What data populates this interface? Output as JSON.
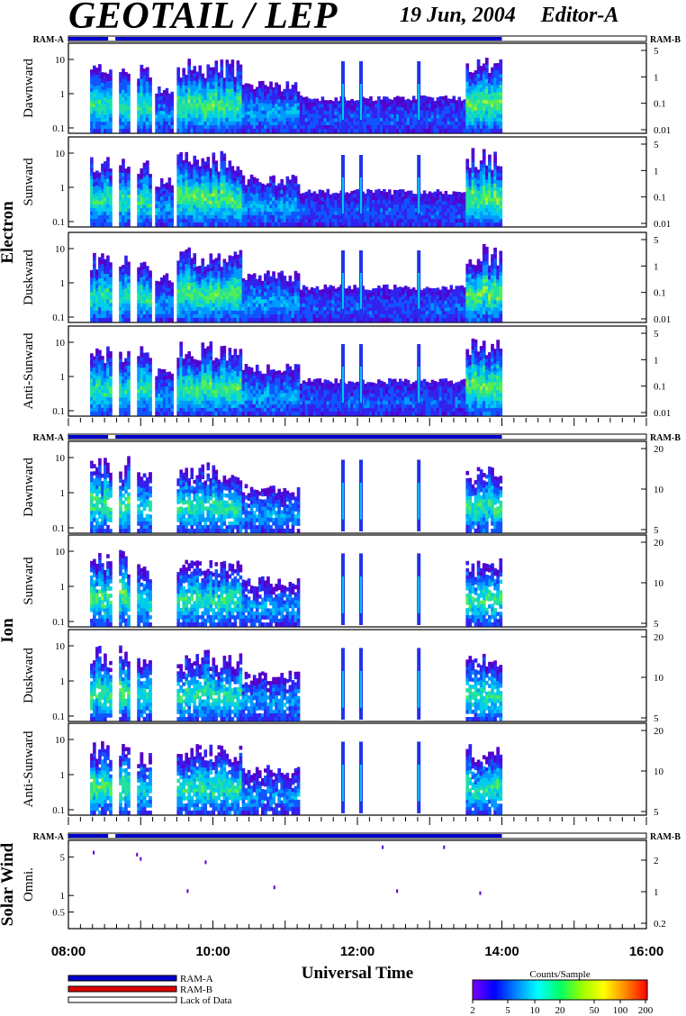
{
  "header": {
    "title": "GEOTAIL / LEP",
    "date": "19 Jun, 2004",
    "editor": "Editor-A"
  },
  "labels": {
    "ram_a": "RAM-A",
    "ram_b": "RAM-B"
  },
  "colors": {
    "ram_a": "#0000cc",
    "ram_b": "#dd0000",
    "lack": "#ffffff"
  },
  "chart_data": [
    {
      "type": "heatmap",
      "group": "Electron",
      "panels": [
        "Dawnward",
        "Sunward",
        "Duskward",
        "Anti-Sunward"
      ],
      "y_ticks_left": [
        "10",
        "1",
        "0.1"
      ],
      "y_ticks_right": [
        "5",
        "1",
        "0.1",
        "0.01"
      ],
      "activity_hours": [
        [
          8.3,
          8.6,
          0.8
        ],
        [
          8.7,
          8.85,
          0.8
        ],
        [
          8.95,
          9.15,
          0.8
        ],
        [
          9.2,
          9.45,
          0.45
        ],
        [
          9.5,
          10.4,
          0.9
        ],
        [
          10.4,
          11.2,
          0.5
        ],
        [
          11.2,
          13.5,
          0.25
        ],
        [
          13.5,
          14.0,
          0.95
        ]
      ],
      "spikes_hours": [
        11.8,
        12.05,
        12.85
      ]
    },
    {
      "type": "heatmap",
      "group": "Ion",
      "panels": [
        "Dawnward",
        "Sunward",
        "Duskward",
        "Anti-Sunward"
      ],
      "y_ticks_left": [
        "10",
        "1",
        "0.1"
      ],
      "y_ticks_right": [
        "20",
        "10",
        "5"
      ],
      "activity_hours": [
        [
          8.3,
          8.6,
          0.9
        ],
        [
          8.7,
          8.85,
          0.9
        ],
        [
          8.95,
          9.15,
          0.7
        ],
        [
          9.5,
          10.4,
          0.8
        ],
        [
          10.4,
          11.2,
          0.45
        ],
        [
          13.5,
          14.0,
          0.8
        ]
      ],
      "spikes_hours": [
        11.8,
        12.05,
        12.85
      ]
    },
    {
      "type": "scatter",
      "group": "Solar Wind",
      "panels": [
        "Omni."
      ],
      "y_ticks_left": [
        "5",
        "1",
        "0.5"
      ],
      "y_ticks_right": [
        "2",
        "1",
        "0.2"
      ],
      "points": [
        [
          8.35,
          6
        ],
        [
          8.95,
          5.5
        ],
        [
          9.0,
          4.6
        ],
        [
          9.9,
          4.0
        ],
        [
          10.85,
          1.4
        ],
        [
          12.35,
          7.5
        ],
        [
          12.55,
          1.2
        ],
        [
          13.2,
          7.5
        ],
        [
          13.7,
          1.1
        ],
        [
          9.65,
          1.2
        ]
      ]
    }
  ],
  "ram_bar": {
    "segments": [
      [
        8.0,
        8.55,
        "ram_a"
      ],
      [
        8.55,
        8.65,
        "lack"
      ],
      [
        8.65,
        14.0,
        "ram_a"
      ],
      [
        14.0,
        16.0,
        "lack"
      ]
    ]
  },
  "x_axis": {
    "label": "Universal Time",
    "range": [
      8,
      16
    ],
    "tick_labels": [
      "08:00",
      "10:00",
      "12:00",
      "14:00",
      "16:00"
    ],
    "tick_hours": [
      8,
      10,
      12,
      14,
      16
    ]
  },
  "legend": {
    "items": [
      "RAM-A",
      "RAM-B",
      "Lack of Data"
    ]
  },
  "colorbar": {
    "title": "Counts/Sample",
    "ticks": [
      "2",
      "5",
      "10",
      "20",
      "50",
      "100",
      "200"
    ]
  }
}
